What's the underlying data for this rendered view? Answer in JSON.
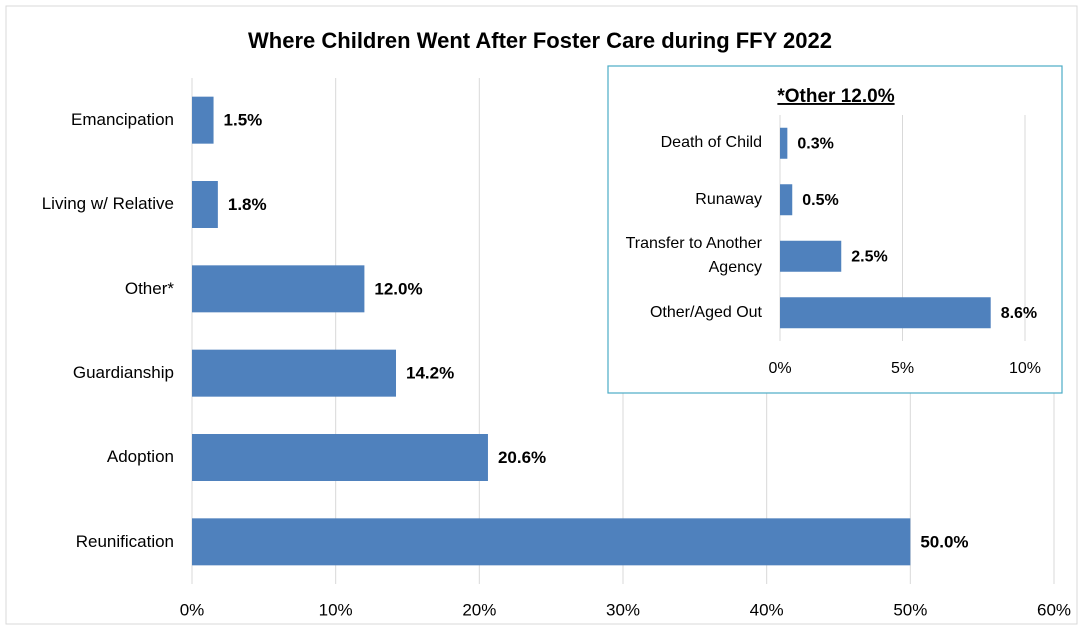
{
  "chart_data": [
    {
      "type": "bar",
      "orientation": "horizontal",
      "title": "Where Children Went After Foster Care during FFY 2022",
      "categories": [
        "Emancipation",
        "Living w/ Relative",
        "Other*",
        "Guardianship",
        "Adoption",
        "Reunification"
      ],
      "values": [
        1.5,
        1.8,
        12.0,
        14.2,
        20.6,
        50.0
      ],
      "value_labels": [
        "1.5%",
        "1.8%",
        "12.0%",
        "14.2%",
        "20.6%",
        "50.0%"
      ],
      "color": "#4f81bd",
      "xlim": [
        0,
        60
      ],
      "xticks": [
        {
          "value": 0,
          "label": "0%"
        },
        {
          "value": 10,
          "label": "10%"
        },
        {
          "value": 20,
          "label": "20%"
        },
        {
          "value": 30,
          "label": "30%"
        },
        {
          "value": 40,
          "label": "40%"
        },
        {
          "value": 50,
          "label": "50%"
        },
        {
          "value": 60,
          "label": "60%"
        }
      ],
      "grid": true
    },
    {
      "type": "bar",
      "orientation": "horizontal",
      "title": "*Other 12.0%",
      "categories": [
        "Death of Child",
        "Runaway",
        "Transfer to Another Agency",
        "Other/Aged Out"
      ],
      "values": [
        0.3,
        0.5,
        2.5,
        8.6
      ],
      "value_labels": [
        "0.3%",
        "0.5%",
        "2.5%",
        "8.6%"
      ],
      "color": "#4f81bd",
      "xlim": [
        0,
        12
      ],
      "xticks": [
        {
          "value": 0,
          "label": "0%"
        },
        {
          "value": 5,
          "label": "5%"
        },
        {
          "value": 10,
          "label": "10%"
        }
      ],
      "grid": true
    }
  ]
}
